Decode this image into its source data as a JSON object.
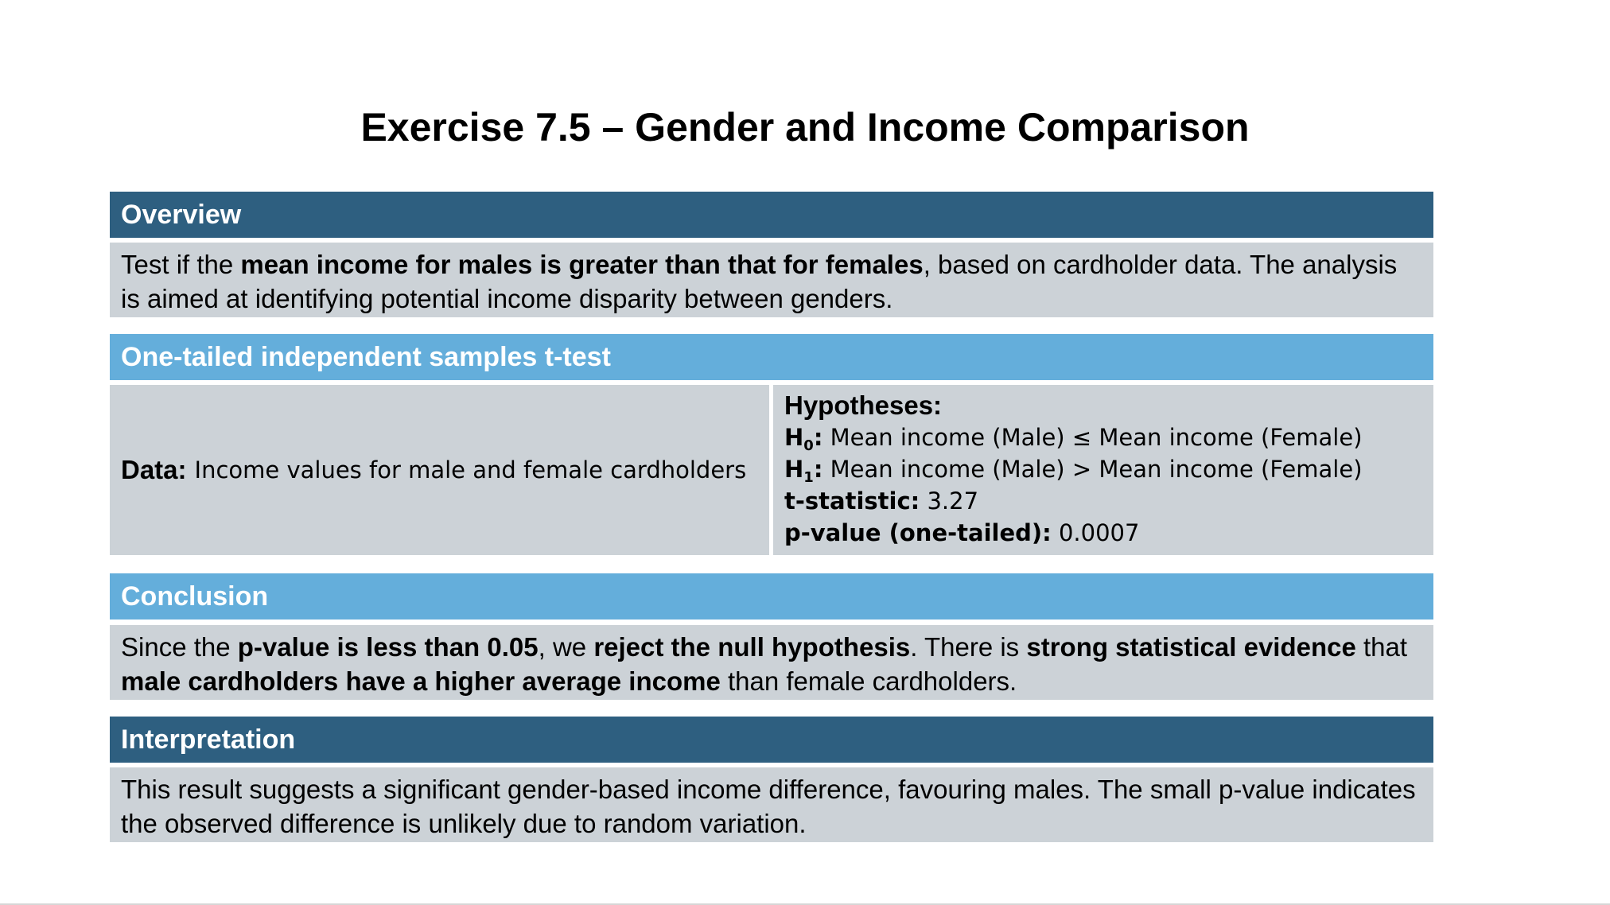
{
  "title": "Exercise 7.5 – Gender and Income Comparison",
  "colors": {
    "dark_header": "#2e5f80",
    "light_header": "#64aedb",
    "panel_background": "#ccd2d7"
  },
  "overview": {
    "heading": "Overview",
    "text_1": "Test if the ",
    "text_bold_1": "mean income for males is greater than that for females",
    "text_2": ", based on cardholder data. The analysis is aimed at identifying potential income disparity between genders."
  },
  "test": {
    "heading": "One-tailed independent samples t-test",
    "data_label": "Data:",
    "data_value": "Income values for male and female cardholders",
    "hypotheses_label": "Hypotheses:",
    "h0_symbol": "H",
    "h0_sub": "0",
    "h0_colon": ":",
    "h0_text": " Mean income (Male) ≤ Mean income (Female)",
    "h1_symbol": "H",
    "h1_sub": "1",
    "h1_colon": ":",
    "h1_text": " Mean income (Male) > Mean income (Female)",
    "t_label": "t-statistic:",
    "t_value": " 3.27",
    "p_label": "p-value (one-tailed):",
    "p_value": " 0.0007"
  },
  "conclusion": {
    "heading": "Conclusion",
    "t1": "Since the ",
    "b1": "p-value is less than 0.05",
    "t2": ", we ",
    "b2": "reject the null hypothesis",
    "t3": ". There is ",
    "b3": "strong statistical evidence",
    "t4": " that ",
    "b4": "male cardholders have a higher average income",
    "t5": " than female cardholders."
  },
  "interpretation": {
    "heading": "Interpretation",
    "text": "This result suggests a significant gender-based income difference, favouring males. The small p-value indicates the observed difference is unlikely due to random variation."
  }
}
